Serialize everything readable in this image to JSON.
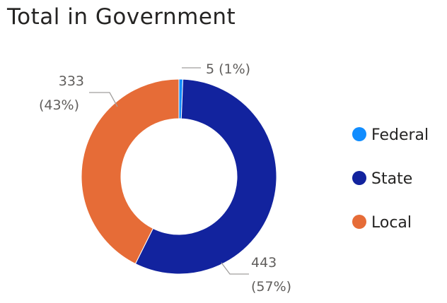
{
  "chart_data": {
    "type": "pie",
    "title": "Total in Government",
    "hole": true,
    "series": [
      {
        "name": "Federal",
        "value": 5,
        "label": "5 (1%)",
        "color": "#118DFF"
      },
      {
        "name": "State",
        "value": 443,
        "label": "443 (57%)",
        "color": "#12239E"
      },
      {
        "name": "Local",
        "value": 333,
        "label": "333 (43%)",
        "color": "#E66C37"
      }
    ],
    "legend": {
      "position": "right",
      "entries": [
        "Federal",
        "State",
        "Local"
      ]
    }
  }
}
